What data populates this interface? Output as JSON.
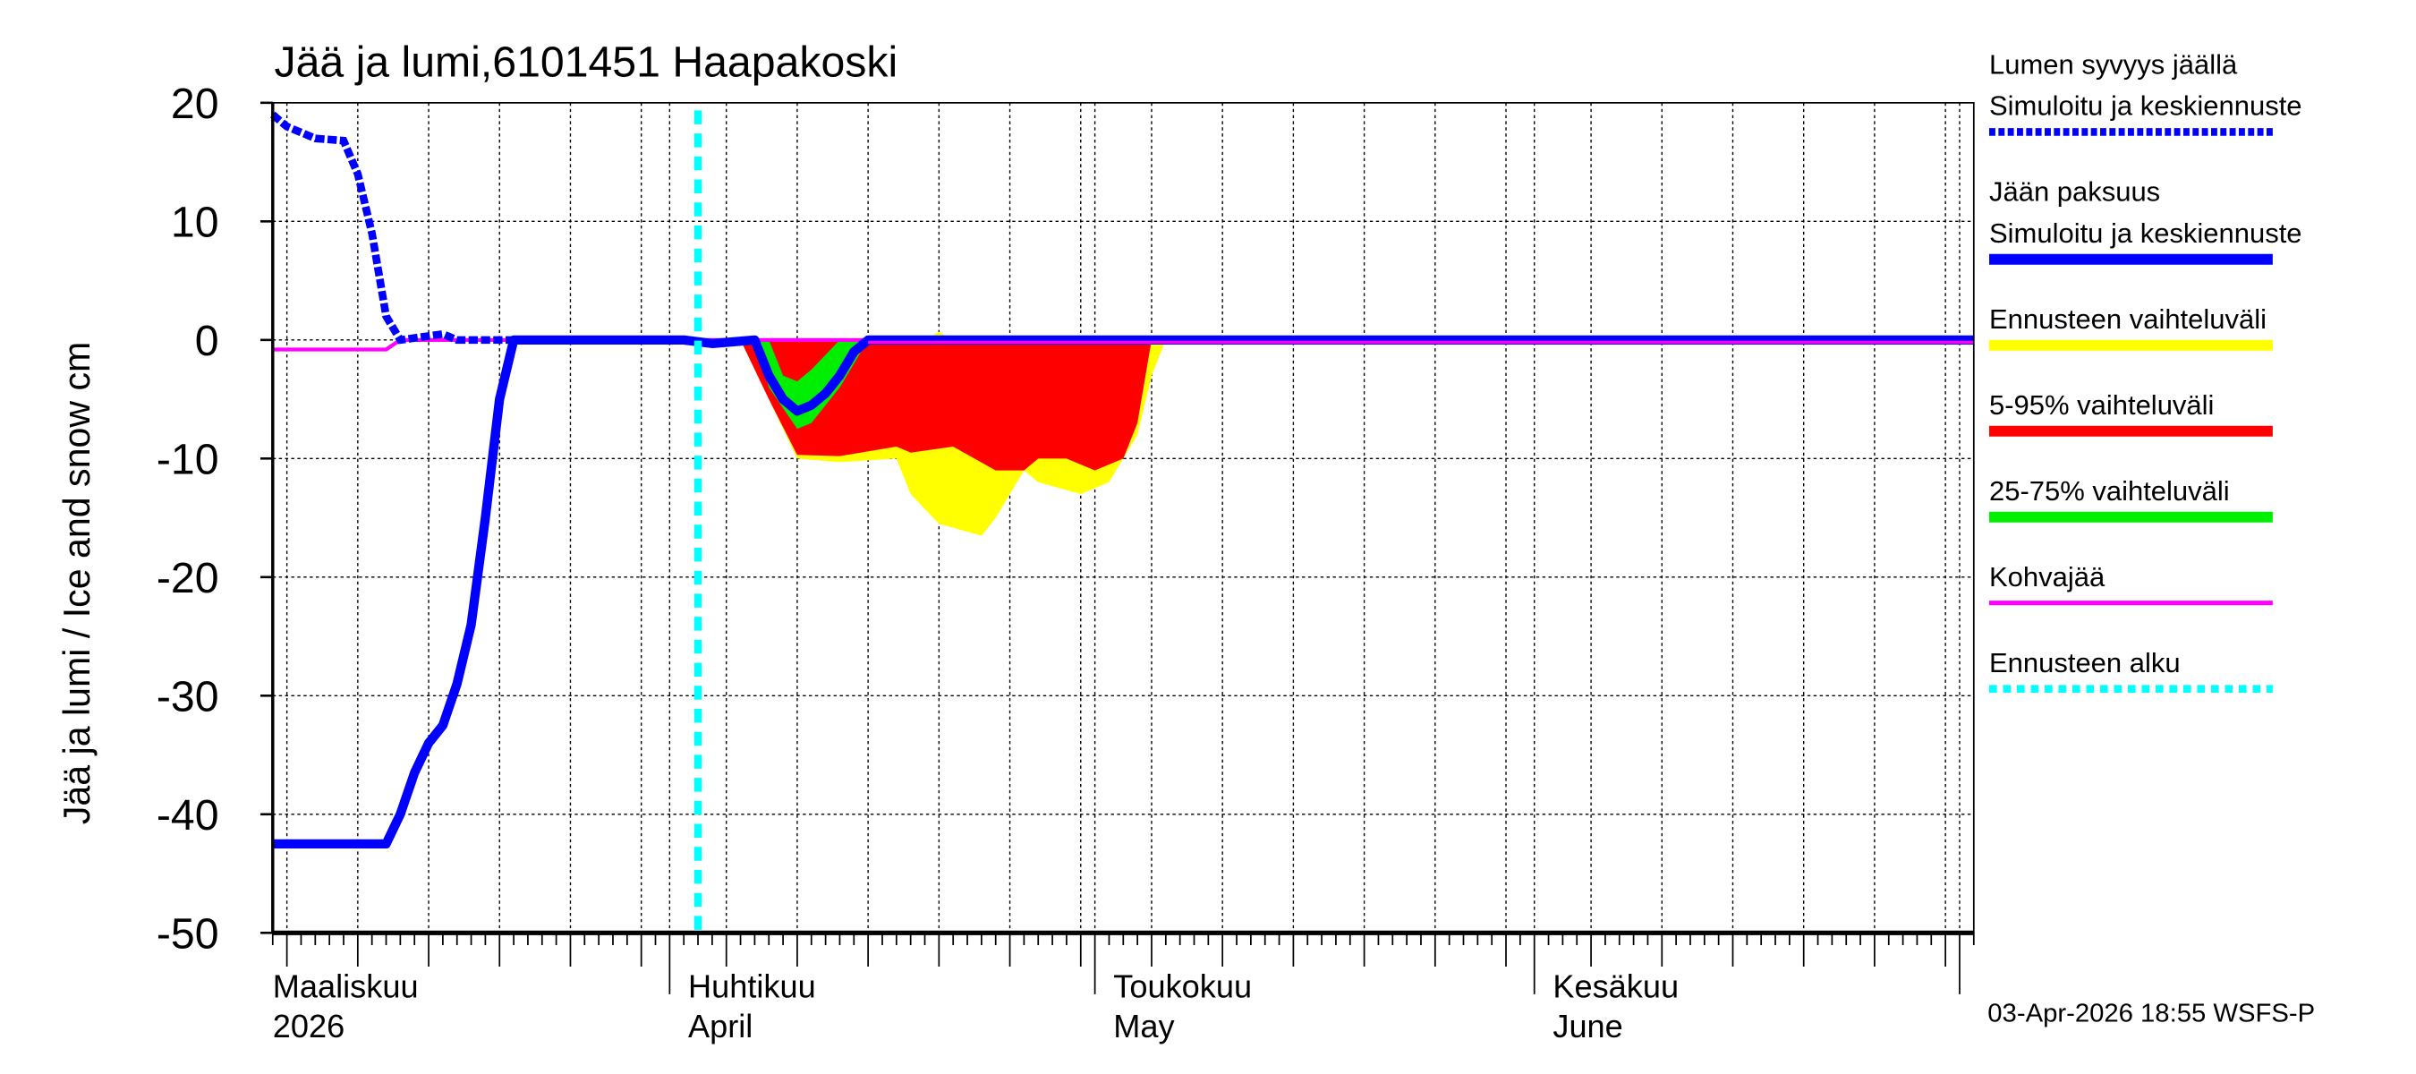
{
  "chart_data": {
    "type": "area",
    "title": "Jää ja lumi,6101451 Haapakoski",
    "ylabel": "Jää ja lumi / Ice and snow    cm",
    "ylim": [
      -50,
      20
    ],
    "yticks": [
      20,
      10,
      0,
      -10,
      -20,
      -30,
      -40,
      -50
    ],
    "xlim": [
      "2026-03-04",
      "2026-07-02"
    ],
    "month_labels": [
      {
        "date": "2026-03-01",
        "fi": "Maaliskuu",
        "en": "2026"
      },
      {
        "date": "2026-04-01",
        "fi": "Huhtikuu",
        "en": "April"
      },
      {
        "date": "2026-05-01",
        "fi": "Toukokuu",
        "en": "May"
      },
      {
        "date": "2026-06-01",
        "fi": "Kesäkuu",
        "en": "June"
      }
    ],
    "forecast_start": "2026-04-03",
    "timestamp": "03-Apr-2026 18:55 WSFS-P",
    "colors": {
      "snow": "#0000ff",
      "ice": "#0000ff",
      "range": "#ffff00",
      "p5_95": "#ff0000",
      "p25_75": "#00ee00",
      "slush": "#ff00ff",
      "forecast": "#00ffff"
    },
    "legend": [
      {
        "label": "Lumen syvyys jäällä",
        "label2": "Simuloitu ja keskiennuste",
        "style": "dashed-blue"
      },
      {
        "label": "Jään paksuus",
        "label2": "Simuloitu ja keskiennuste",
        "style": "solid-blue"
      },
      {
        "label": "Ennusteen vaihteluväli",
        "style": "yellow"
      },
      {
        "label": "5-95% vaihteluväli",
        "style": "red"
      },
      {
        "label": "25-75% vaihteluväli",
        "style": "green"
      },
      {
        "label": "Kohvajää",
        "style": "magenta"
      },
      {
        "label": "Ennusteen alku",
        "style": "cyan-dotted"
      }
    ],
    "series": {
      "range_lower": [
        [
          "2026-04-06",
          0
        ],
        [
          "2026-04-08",
          -5
        ],
        [
          "2026-04-10",
          -10
        ],
        [
          "2026-04-13",
          -10.3
        ],
        [
          "2026-04-17",
          -10
        ],
        [
          "2026-04-18",
          -13
        ],
        [
          "2026-04-20",
          -15.5
        ],
        [
          "2026-04-23",
          -16.5
        ],
        [
          "2026-04-24",
          -15
        ],
        [
          "2026-04-26",
          -11
        ],
        [
          "2026-04-27",
          -12
        ],
        [
          "2026-04-30",
          -13
        ],
        [
          "2026-05-02",
          -12
        ],
        [
          "2026-05-04",
          -8
        ],
        [
          "2026-05-05",
          -3
        ],
        [
          "2026-05-06",
          0
        ]
      ],
      "range_upper": [
        [
          "2026-04-06",
          0
        ],
        [
          "2026-04-19",
          0
        ],
        [
          "2026-04-20",
          0.7
        ],
        [
          "2026-04-21",
          0
        ],
        [
          "2026-05-06",
          0
        ]
      ],
      "p5_95_lower": [
        [
          "2026-04-06",
          0
        ],
        [
          "2026-04-08",
          -5
        ],
        [
          "2026-04-10",
          -9.7
        ],
        [
          "2026-04-13",
          -9.8
        ],
        [
          "2026-04-17",
          -9
        ],
        [
          "2026-04-18",
          -9.5
        ],
        [
          "2026-04-21",
          -9
        ],
        [
          "2026-04-24",
          -11
        ],
        [
          "2026-04-26",
          -11
        ],
        [
          "2026-04-27",
          -10
        ],
        [
          "2026-04-29",
          -10
        ],
        [
          "2026-05-01",
          -11
        ],
        [
          "2026-05-03",
          -10
        ],
        [
          "2026-05-04",
          -7
        ],
        [
          "2026-05-05",
          0
        ]
      ],
      "p25_75_lower": [
        [
          "2026-04-07",
          0
        ],
        [
          "2026-04-08",
          -4
        ],
        [
          "2026-04-10",
          -7.5
        ],
        [
          "2026-04-11",
          -7
        ],
        [
          "2026-04-13",
          -4
        ],
        [
          "2026-04-15",
          0
        ]
      ],
      "p25_75_upper": [
        [
          "2026-04-07",
          0
        ],
        [
          "2026-04-08",
          0
        ],
        [
          "2026-04-09",
          -3
        ],
        [
          "2026-04-10",
          -3.5
        ],
        [
          "2026-04-11",
          -2.5
        ],
        [
          "2026-04-13",
          0
        ],
        [
          "2026-04-15",
          0
        ]
      ],
      "snow_depth": [
        [
          "2026-03-04",
          19
        ],
        [
          "2026-03-05",
          18
        ],
        [
          "2026-03-07",
          17
        ],
        [
          "2026-03-09",
          16.8
        ],
        [
          "2026-03-10",
          14
        ],
        [
          "2026-03-11",
          9
        ],
        [
          "2026-03-12",
          2
        ],
        [
          "2026-03-13",
          0
        ],
        [
          "2026-03-16",
          0.5
        ],
        [
          "2026-03-17",
          0
        ],
        [
          "2026-03-21",
          0
        ]
      ],
      "ice_thickness": [
        [
          "2026-03-04",
          -42.5
        ],
        [
          "2026-03-12",
          -42.5
        ],
        [
          "2026-03-13",
          -40
        ],
        [
          "2026-03-14",
          -36.5
        ],
        [
          "2026-03-15",
          -34
        ],
        [
          "2026-03-16",
          -32.5
        ],
        [
          "2026-03-17",
          -29
        ],
        [
          "2026-03-18",
          -24
        ],
        [
          "2026-03-19",
          -15
        ],
        [
          "2026-03-20",
          -5
        ],
        [
          "2026-03-21",
          0
        ],
        [
          "2026-04-02",
          0
        ],
        [
          "2026-04-04",
          -0.3
        ],
        [
          "2026-04-07",
          0
        ],
        [
          "2026-04-08",
          -3
        ],
        [
          "2026-04-09",
          -5
        ],
        [
          "2026-04-10",
          -6
        ],
        [
          "2026-04-11",
          -5.5
        ],
        [
          "2026-04-12",
          -4.5
        ],
        [
          "2026-04-13",
          -3
        ],
        [
          "2026-04-14",
          -1
        ],
        [
          "2026-04-15",
          0
        ],
        [
          "2026-07-02",
          0
        ]
      ],
      "slush_ice": [
        [
          "2026-03-04",
          -0.8
        ],
        [
          "2026-03-12",
          -0.8
        ],
        [
          "2026-03-13",
          0
        ],
        [
          "2026-07-02",
          0
        ]
      ]
    }
  }
}
